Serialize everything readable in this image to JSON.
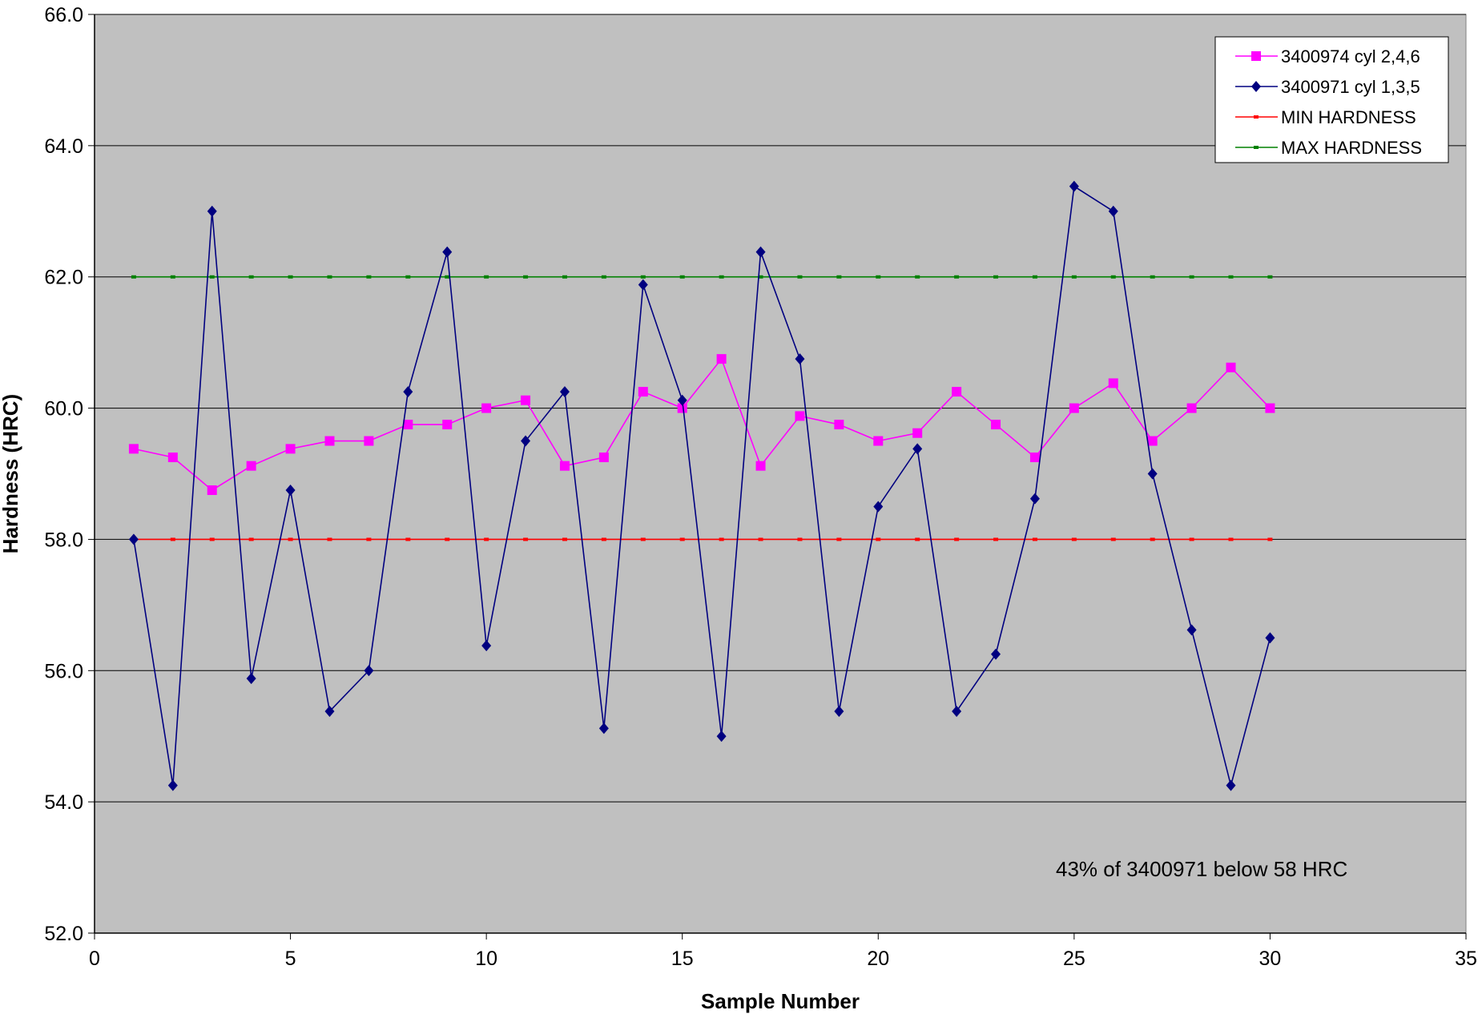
{
  "chart_data": {
    "type": "line",
    "title": "",
    "xlabel": "Sample Number",
    "ylabel": "Hardness (HRC)",
    "xlim": [
      0,
      35
    ],
    "ylim": [
      52.0,
      66.0
    ],
    "xticks": [
      0,
      5,
      10,
      15,
      20,
      25,
      30,
      35
    ],
    "yticks": [
      "52.0",
      "54.0",
      "56.0",
      "58.0",
      "60.0",
      "62.0",
      "64.0",
      "66.0"
    ],
    "grid": "horizontal major gridlines",
    "plot_background": "#c0c0c0",
    "legend_position": "top-right",
    "annotation": "43% of 3400971 below 58 HRC",
    "series": [
      {
        "name": "3400974 cyl 2,4,6",
        "color": "#ff00ff",
        "marker": "square",
        "x": [
          1,
          2,
          3,
          4,
          5,
          6,
          7,
          8,
          9,
          10,
          11,
          12,
          13,
          14,
          15,
          16,
          17,
          18,
          19,
          20,
          21,
          22,
          23,
          24,
          25,
          26,
          27,
          28,
          29,
          30
        ],
        "values": [
          59.38,
          59.25,
          58.75,
          59.12,
          59.38,
          59.5,
          59.5,
          59.75,
          59.75,
          60.0,
          60.12,
          59.12,
          59.25,
          60.25,
          60.0,
          60.75,
          59.12,
          59.88,
          59.75,
          59.5,
          59.62,
          60.25,
          59.75,
          59.25,
          60.0,
          60.38,
          59.5,
          60.0,
          60.62,
          60.0
        ]
      },
      {
        "name": "3400971 cyl 1,3,5",
        "color": "#000080",
        "marker": "diamond",
        "x": [
          1,
          2,
          3,
          4,
          5,
          6,
          7,
          8,
          9,
          10,
          11,
          12,
          13,
          14,
          15,
          16,
          17,
          18,
          19,
          20,
          21,
          22,
          23,
          24,
          25,
          26,
          27,
          28,
          29,
          30
        ],
        "values": [
          58.0,
          54.25,
          63.0,
          55.88,
          58.75,
          55.38,
          56.0,
          60.25,
          62.38,
          56.38,
          59.5,
          60.25,
          55.12,
          61.88,
          60.12,
          55.0,
          62.38,
          60.75,
          55.38,
          58.5,
          59.38,
          55.38,
          56.25,
          58.62,
          63.38,
          63.0,
          59.0,
          56.62,
          54.25,
          56.5
        ]
      },
      {
        "name": "MIN HARDNESS",
        "color": "#ff0000",
        "marker": "dash",
        "x": [
          1,
          2,
          3,
          4,
          5,
          6,
          7,
          8,
          9,
          10,
          11,
          12,
          13,
          14,
          15,
          16,
          17,
          18,
          19,
          20,
          21,
          22,
          23,
          24,
          25,
          26,
          27,
          28,
          29,
          30
        ],
        "values": [
          58,
          58,
          58,
          58,
          58,
          58,
          58,
          58,
          58,
          58,
          58,
          58,
          58,
          58,
          58,
          58,
          58,
          58,
          58,
          58,
          58,
          58,
          58,
          58,
          58,
          58,
          58,
          58,
          58,
          58
        ]
      },
      {
        "name": "MAX HARDNESS",
        "color": "#008000",
        "marker": "dash",
        "x": [
          1,
          2,
          3,
          4,
          5,
          6,
          7,
          8,
          9,
          10,
          11,
          12,
          13,
          14,
          15,
          16,
          17,
          18,
          19,
          20,
          21,
          22,
          23,
          24,
          25,
          26,
          27,
          28,
          29,
          30
        ],
        "values": [
          62,
          62,
          62,
          62,
          62,
          62,
          62,
          62,
          62,
          62,
          62,
          62,
          62,
          62,
          62,
          62,
          62,
          62,
          62,
          62,
          62,
          62,
          62,
          62,
          62,
          62,
          62,
          62,
          62,
          62
        ]
      }
    ]
  }
}
